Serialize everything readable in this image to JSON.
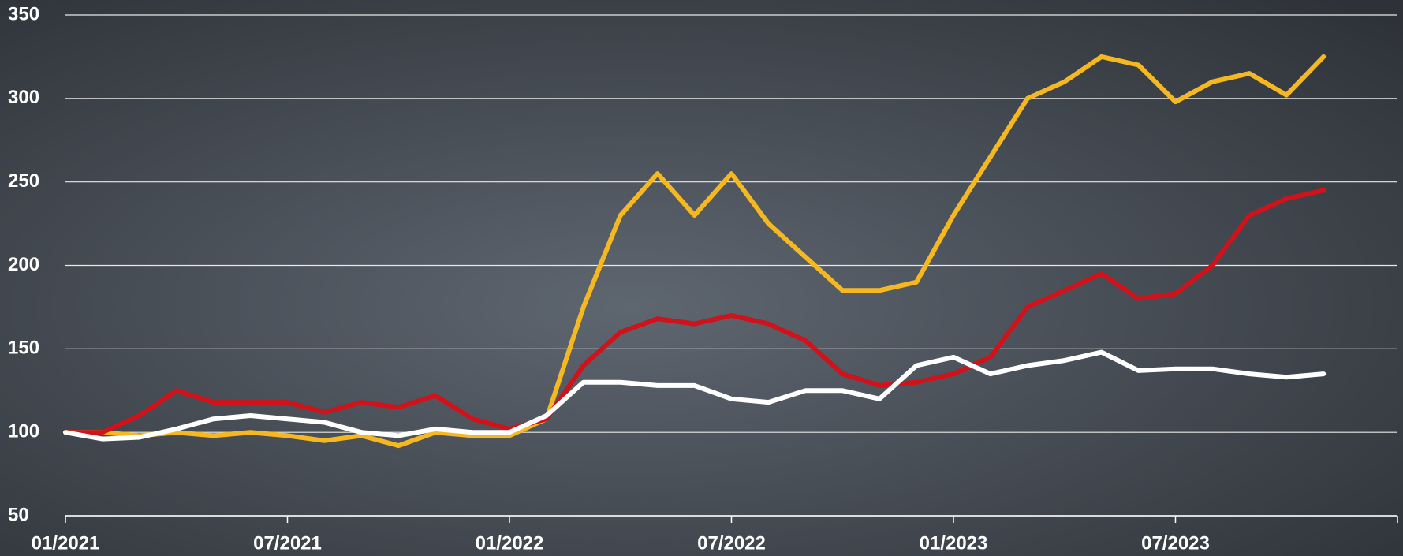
{
  "chart_data": {
    "type": "line",
    "x": [
      "2021-01",
      "2021-02",
      "2021-03",
      "2021-04",
      "2021-05",
      "2021-06",
      "2021-07",
      "2021-08",
      "2021-09",
      "2021-10",
      "2021-11",
      "2021-12",
      "2022-01",
      "2022-02",
      "2022-03",
      "2022-04",
      "2022-05",
      "2022-06",
      "2022-07",
      "2022-08",
      "2022-09",
      "2022-10",
      "2022-11",
      "2022-12",
      "2023-01",
      "2023-02",
      "2023-03",
      "2023-04",
      "2023-05",
      "2023-06",
      "2023-07",
      "2023-08",
      "2023-09",
      "2023-10",
      "2023-11"
    ],
    "series": [
      {
        "color": "#f5b820",
        "values": [
          100,
          100,
          98,
          100,
          98,
          100,
          98,
          95,
          98,
          92,
          100,
          98,
          98,
          108,
          175,
          230,
          255,
          230,
          255,
          225,
          205,
          185,
          185,
          190,
          230,
          265,
          300,
          310,
          325,
          320,
          298,
          310,
          315,
          302,
          325
        ]
      },
      {
        "color": "#d0121b",
        "values": [
          100,
          100,
          110,
          125,
          118,
          118,
          118,
          112,
          118,
          115,
          122,
          108,
          102,
          108,
          140,
          160,
          168,
          165,
          170,
          165,
          155,
          135,
          128,
          130,
          135,
          145,
          175,
          185,
          195,
          180,
          183,
          200,
          230,
          240,
          245
        ]
      },
      {
        "color": "#ffffff",
        "values": [
          100,
          96,
          97,
          102,
          108,
          110,
          108,
          106,
          100,
          98,
          102,
          100,
          100,
          110,
          130,
          130,
          128,
          128,
          120,
          118,
          125,
          125,
          120,
          140,
          145,
          135,
          140,
          143,
          148,
          137,
          138,
          138,
          135,
          133,
          135
        ]
      }
    ],
    "xlim": [
      "2021-01",
      "2024-01"
    ],
    "xticks": [
      {
        "value": "2021-01",
        "label": "01/2021"
      },
      {
        "value": "2021-07",
        "label": "07/2021"
      },
      {
        "value": "2022-01",
        "label": "01/2022"
      },
      {
        "value": "2022-07",
        "label": "07/2022"
      },
      {
        "value": "2023-01",
        "label": "01/2023"
      },
      {
        "value": "2023-07",
        "label": "07/2023"
      }
    ],
    "ylim": [
      50,
      350
    ],
    "yticks": [
      50,
      100,
      150,
      200,
      250,
      300,
      350
    ],
    "grid": true
  }
}
